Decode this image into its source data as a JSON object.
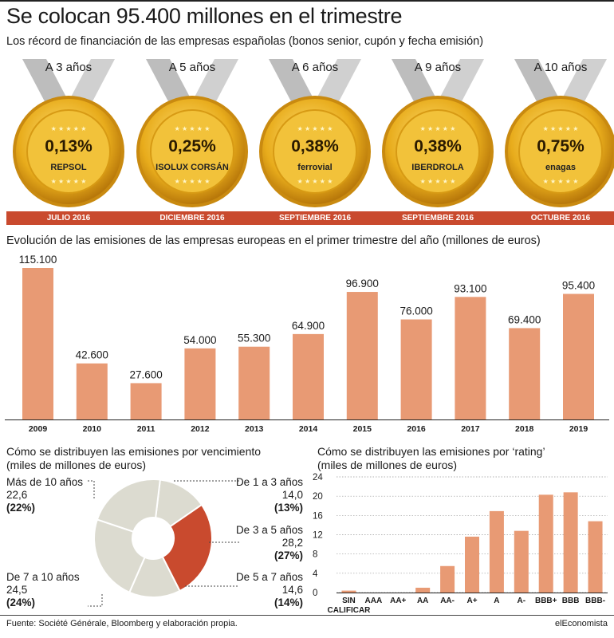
{
  "header": {
    "title": "Se colocan 95.400 millones en el trimestre",
    "subtitle": "Los récord de financiación de las empresas españolas (bonos senior, cupón y fecha emisión)"
  },
  "medals": [
    {
      "period": "A 3 años",
      "pct": "0,13%",
      "brand": "REPSOL",
      "date": "JULIO 2016"
    },
    {
      "period": "A 5 años",
      "pct": "0,25%",
      "brand": "ISOLUX CORSÁN",
      "date": "DICIEMBRE 2016"
    },
    {
      "period": "A 6 años",
      "pct": "0,38%",
      "brand": "ferrovial",
      "date": "SEPTIEMBRE 2016"
    },
    {
      "period": "A 9 años",
      "pct": "0,38%",
      "brand": "IBERDROLA",
      "date": "SEPTIEMBRE 2016"
    },
    {
      "period": "A 10 años",
      "pct": "0,75%",
      "brand": "enagas",
      "date": "OCTUBRE 2016"
    }
  ],
  "colors": {
    "bar": "#e89a74",
    "accent": "#c94a2e",
    "donut_light": "#dcdbd0",
    "gold": "#e8b020"
  },
  "chart_data": [
    {
      "type": "bar",
      "title": "Evolución de las emisiones de las empresas europeas en el primer trimestre del año (millones de euros)",
      "categories": [
        "2009",
        "2010",
        "2011",
        "2012",
        "2013",
        "2014",
        "2015",
        "2016",
        "2017",
        "2018",
        "2019"
      ],
      "values": [
        115100,
        42600,
        27600,
        54000,
        55300,
        64900,
        96900,
        76000,
        93100,
        69400,
        95400
      ],
      "value_labels": [
        "115.100",
        "42.600",
        "27.600",
        "54.000",
        "55.300",
        "64.900",
        "96.900",
        "76.000",
        "93.100",
        "69.400",
        "95.400"
      ],
      "ylim": [
        0,
        120000
      ]
    },
    {
      "type": "pie",
      "title": "Cómo se distribuyen las emisiones por vencimiento",
      "subtitle": "(miles de millones de euros)",
      "slices": [
        {
          "label": "De 1 a 3 años",
          "value": 14.0,
          "value_text": "14,0",
          "pct_text": "(13%)"
        },
        {
          "label": "De 3 a 5 años",
          "value": 28.2,
          "value_text": "28,2",
          "pct_text": "(27%)",
          "highlight": true
        },
        {
          "label": "De 5 a 7 años",
          "value": 14.6,
          "value_text": "14,6",
          "pct_text": "(14%)"
        },
        {
          "label": "De 7 a 10 años",
          "value": 24.5,
          "value_text": "24,5",
          "pct_text": "(24%)"
        },
        {
          "label": "Más de 10 años",
          "value": 22.6,
          "value_text": "22,6",
          "pct_text": "(22%)"
        }
      ]
    },
    {
      "type": "bar",
      "title": "Cómo se distribuyen las emisiones por ‘rating’",
      "subtitle": "(miles de millones de euros)",
      "categories": [
        "SIN CALIFICAR",
        "AAA",
        "AA+",
        "AA",
        "AA-",
        "A+",
        "A",
        "A-",
        "BBB+",
        "BBB",
        "BBB-"
      ],
      "values": [
        0.4,
        0,
        0,
        1.0,
        5.5,
        11.6,
        16.9,
        12.8,
        20.3,
        20.8,
        14.8
      ],
      "ylim": [
        0,
        24
      ],
      "yticks": [
        0,
        4,
        8,
        12,
        16,
        20,
        24
      ],
      "grid": true
    }
  ],
  "footer": {
    "source": "Fuente: Société Générale, Bloomberg y elaboración propia.",
    "brand": "elEconomista"
  }
}
